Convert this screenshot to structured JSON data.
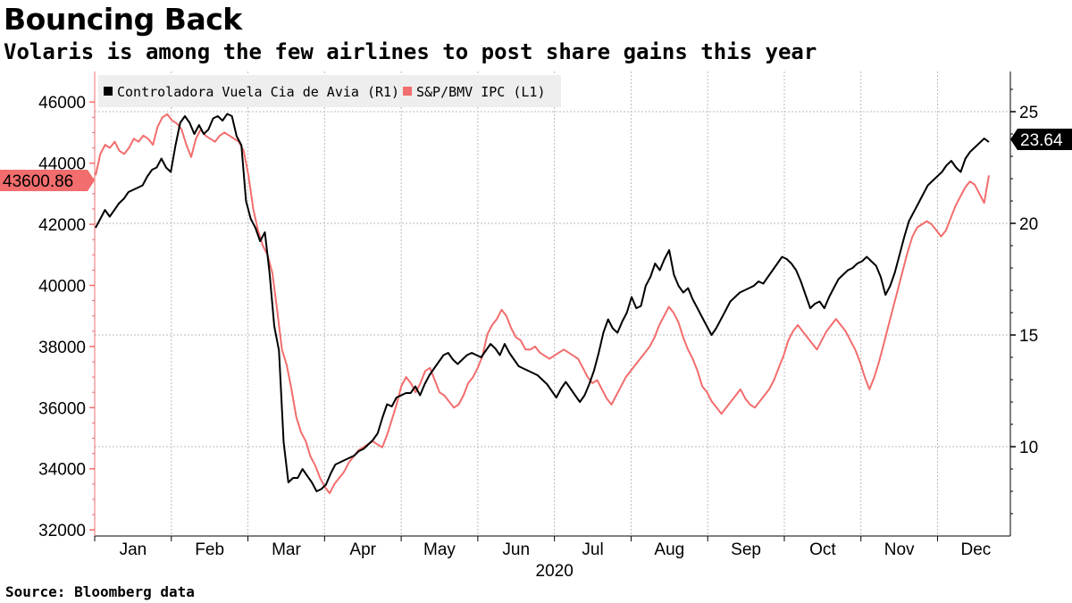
{
  "title": "Bouncing Back",
  "subtitle": "Volaris is among the few airlines to post share gains this year",
  "source": "Source: Bloomberg data",
  "chart_data": {
    "type": "line",
    "x_axis": {
      "months": [
        "Jan",
        "Feb",
        "Mar",
        "Apr",
        "May",
        "Jun",
        "Jul",
        "Aug",
        "Sep",
        "Oct",
        "Nov",
        "Dec"
      ],
      "year": "2020"
    },
    "left_axis": {
      "ticks": [
        32000,
        34000,
        36000,
        38000,
        40000,
        42000,
        44000,
        46000
      ],
      "range": [
        31800,
        47000
      ]
    },
    "right_axis": {
      "ticks": [
        10,
        15,
        20,
        25
      ],
      "range": [
        6,
        26.8
      ]
    },
    "grid": true,
    "legend": "top-left",
    "series": [
      {
        "name": "Controladora Vuela Cia de Avia (R1)",
        "axis": "right",
        "color": "#000000",
        "last_value": "23.64",
        "values": [
          19.8,
          20.2,
          20.6,
          20.3,
          20.6,
          20.9,
          21.1,
          21.4,
          21.5,
          21.6,
          21.7,
          22.1,
          22.4,
          22.5,
          22.9,
          22.5,
          22.3,
          23.5,
          24.5,
          24.8,
          24.5,
          24.0,
          24.4,
          24.0,
          24.2,
          24.7,
          24.8,
          24.6,
          24.9,
          24.8,
          23.9,
          23.5,
          21.0,
          20.2,
          19.8,
          19.2,
          19.6,
          17.8,
          15.4,
          14.3,
          10.2,
          8.4,
          8.6,
          8.6,
          9.0,
          8.7,
          8.4,
          8.0,
          8.1,
          8.3,
          8.8,
          9.2,
          9.3,
          9.4,
          9.5,
          9.6,
          9.8,
          9.9,
          10.1,
          10.3,
          10.6,
          11.3,
          11.9,
          11.8,
          12.2,
          12.3,
          12.4,
          12.4,
          12.7,
          12.3,
          12.8,
          13.2,
          13.5,
          13.8,
          14.1,
          14.2,
          13.9,
          13.7,
          13.9,
          14.1,
          14.2,
          14.1,
          14.0,
          14.3,
          14.6,
          14.4,
          14.1,
          14.6,
          14.2,
          13.9,
          13.6,
          13.5,
          13.4,
          13.3,
          13.2,
          13.0,
          12.8,
          12.5,
          12.2,
          12.6,
          12.9,
          12.6,
          12.3,
          12.0,
          12.3,
          12.8,
          13.4,
          14.2,
          15.1,
          15.7,
          15.3,
          15.1,
          15.6,
          16.0,
          16.7,
          16.2,
          16.3,
          17.2,
          17.6,
          18.2,
          17.9,
          18.4,
          18.8,
          17.7,
          17.2,
          16.9,
          17.1,
          16.6,
          16.2,
          15.8,
          15.4,
          15.0,
          15.3,
          15.7,
          16.1,
          16.5,
          16.7,
          16.9,
          17.0,
          17.1,
          17.2,
          17.4,
          17.3,
          17.6,
          17.9,
          18.2,
          18.5,
          18.4,
          18.2,
          17.9,
          17.4,
          16.8,
          16.2,
          16.4,
          16.5,
          16.2,
          16.7,
          17.1,
          17.5,
          17.7,
          17.9,
          18.0,
          18.2,
          18.3,
          18.5,
          18.3,
          18.1,
          17.6,
          16.8,
          17.2,
          17.8,
          18.6,
          19.4,
          20.1,
          20.5,
          20.9,
          21.3,
          21.7,
          21.9,
          22.1,
          22.3,
          22.6,
          22.8,
          22.5,
          22.3,
          22.9,
          23.2,
          23.4,
          23.6,
          23.8,
          23.64
        ]
      },
      {
        "name": "S&P/BMV IPC (L1)",
        "axis": "left",
        "color": "#f26d6d",
        "last_value": "43600.86",
        "values": [
          43600,
          44300,
          44600,
          44500,
          44700,
          44400,
          44300,
          44500,
          44800,
          44700,
          44900,
          44800,
          44600,
          45200,
          45500,
          45600,
          45400,
          45300,
          45100,
          44600,
          44200,
          44800,
          45100,
          44900,
          44800,
          44700,
          44900,
          45000,
          44900,
          44800,
          44700,
          44400,
          43600,
          42500,
          41800,
          41300,
          41000,
          40400,
          39200,
          37900,
          37400,
          36600,
          35700,
          35200,
          34900,
          34400,
          34100,
          33700,
          33400,
          33200,
          33500,
          33700,
          33900,
          34200,
          34400,
          34600,
          34700,
          34800,
          34900,
          34800,
          34700,
          35100,
          35600,
          36100,
          36700,
          37000,
          36800,
          36500,
          36800,
          37200,
          37300,
          36900,
          36500,
          36400,
          36200,
          36000,
          36100,
          36400,
          36800,
          37000,
          37300,
          37700,
          38400,
          38700,
          38900,
          39200,
          39000,
          38600,
          38300,
          38200,
          37900,
          37900,
          38000,
          37800,
          37700,
          37600,
          37700,
          37800,
          37900,
          37800,
          37700,
          37600,
          37300,
          37000,
          36800,
          36900,
          36600,
          36300,
          36100,
          36400,
          36700,
          37000,
          37200,
          37400,
          37600,
          37800,
          38000,
          38300,
          38700,
          39000,
          39300,
          39100,
          38800,
          38300,
          37900,
          37600,
          37200,
          36700,
          36500,
          36200,
          36000,
          35800,
          36000,
          36200,
          36400,
          36600,
          36300,
          36100,
          36000,
          36200,
          36400,
          36600,
          36900,
          37300,
          37700,
          38200,
          38500,
          38700,
          38500,
          38300,
          38100,
          37900,
          38200,
          38500,
          38700,
          38900,
          38700,
          38500,
          38200,
          37900,
          37500,
          37000,
          36600,
          37000,
          37500,
          38100,
          38700,
          39300,
          39900,
          40500,
          41100,
          41600,
          41900,
          42000,
          42100,
          42000,
          41800,
          41600,
          41800,
          42200,
          42600,
          42900,
          43200,
          43400,
          43300,
          43000,
          42700,
          43600.86
        ]
      }
    ]
  }
}
